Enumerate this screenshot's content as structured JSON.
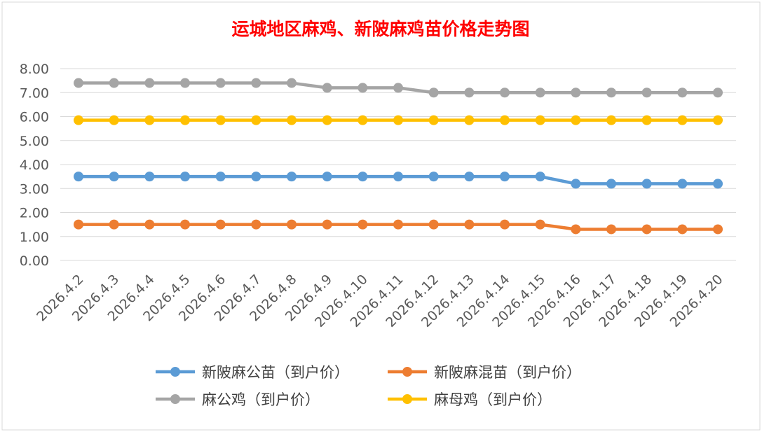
{
  "chart_data": {
    "type": "line",
    "title": "运城地区麻鸡、新陂麻鸡苗价格走势图",
    "xlabel": "",
    "ylabel": "",
    "categories": [
      "2026.4.2",
      "2026.4.3",
      "2026.4.4",
      "2026.4.5",
      "2026.4.6",
      "2026.4.7",
      "2026.4.8",
      "2026.4.9",
      "2026.4.10",
      "2026.4.11",
      "2026.4.12",
      "2026.4.13",
      "2026.4.14",
      "2026.4.15",
      "2026.4.16",
      "2026.4.17",
      "2026.4.18",
      "2026.4.19",
      "2026.4.20"
    ],
    "ylim": [
      0,
      8
    ],
    "yticks": [
      "0.00",
      "1.00",
      "2.00",
      "3.00",
      "4.00",
      "5.00",
      "6.00",
      "7.00",
      "8.00"
    ],
    "grid": true,
    "legend_position": "bottom",
    "series": [
      {
        "name": "新陂麻公苗（到户价）",
        "color": "#5b9bd5",
        "values": [
          3.5,
          3.5,
          3.5,
          3.5,
          3.5,
          3.5,
          3.5,
          3.5,
          3.5,
          3.5,
          3.5,
          3.5,
          3.5,
          3.5,
          3.2,
          3.2,
          3.2,
          3.2,
          3.2
        ]
      },
      {
        "name": "新陂麻混苗（到户价）",
        "color": "#ed7d31",
        "values": [
          1.5,
          1.5,
          1.5,
          1.5,
          1.5,
          1.5,
          1.5,
          1.5,
          1.5,
          1.5,
          1.5,
          1.5,
          1.5,
          1.5,
          1.3,
          1.3,
          1.3,
          1.3,
          1.3
        ]
      },
      {
        "name": "麻公鸡（到户价）",
        "color": "#a5a5a5",
        "values": [
          7.4,
          7.4,
          7.4,
          7.4,
          7.4,
          7.4,
          7.4,
          7.2,
          7.2,
          7.2,
          7.0,
          7.0,
          7.0,
          7.0,
          7.0,
          7.0,
          7.0,
          7.0,
          7.0
        ]
      },
      {
        "name": "麻母鸡（到户价）",
        "color": "#ffc000",
        "values": [
          5.85,
          5.85,
          5.85,
          5.85,
          5.85,
          5.85,
          5.85,
          5.85,
          5.85,
          5.85,
          5.85,
          5.85,
          5.85,
          5.85,
          5.85,
          5.85,
          5.85,
          5.85,
          5.85
        ]
      }
    ],
    "title_color": "#ff0000"
  }
}
